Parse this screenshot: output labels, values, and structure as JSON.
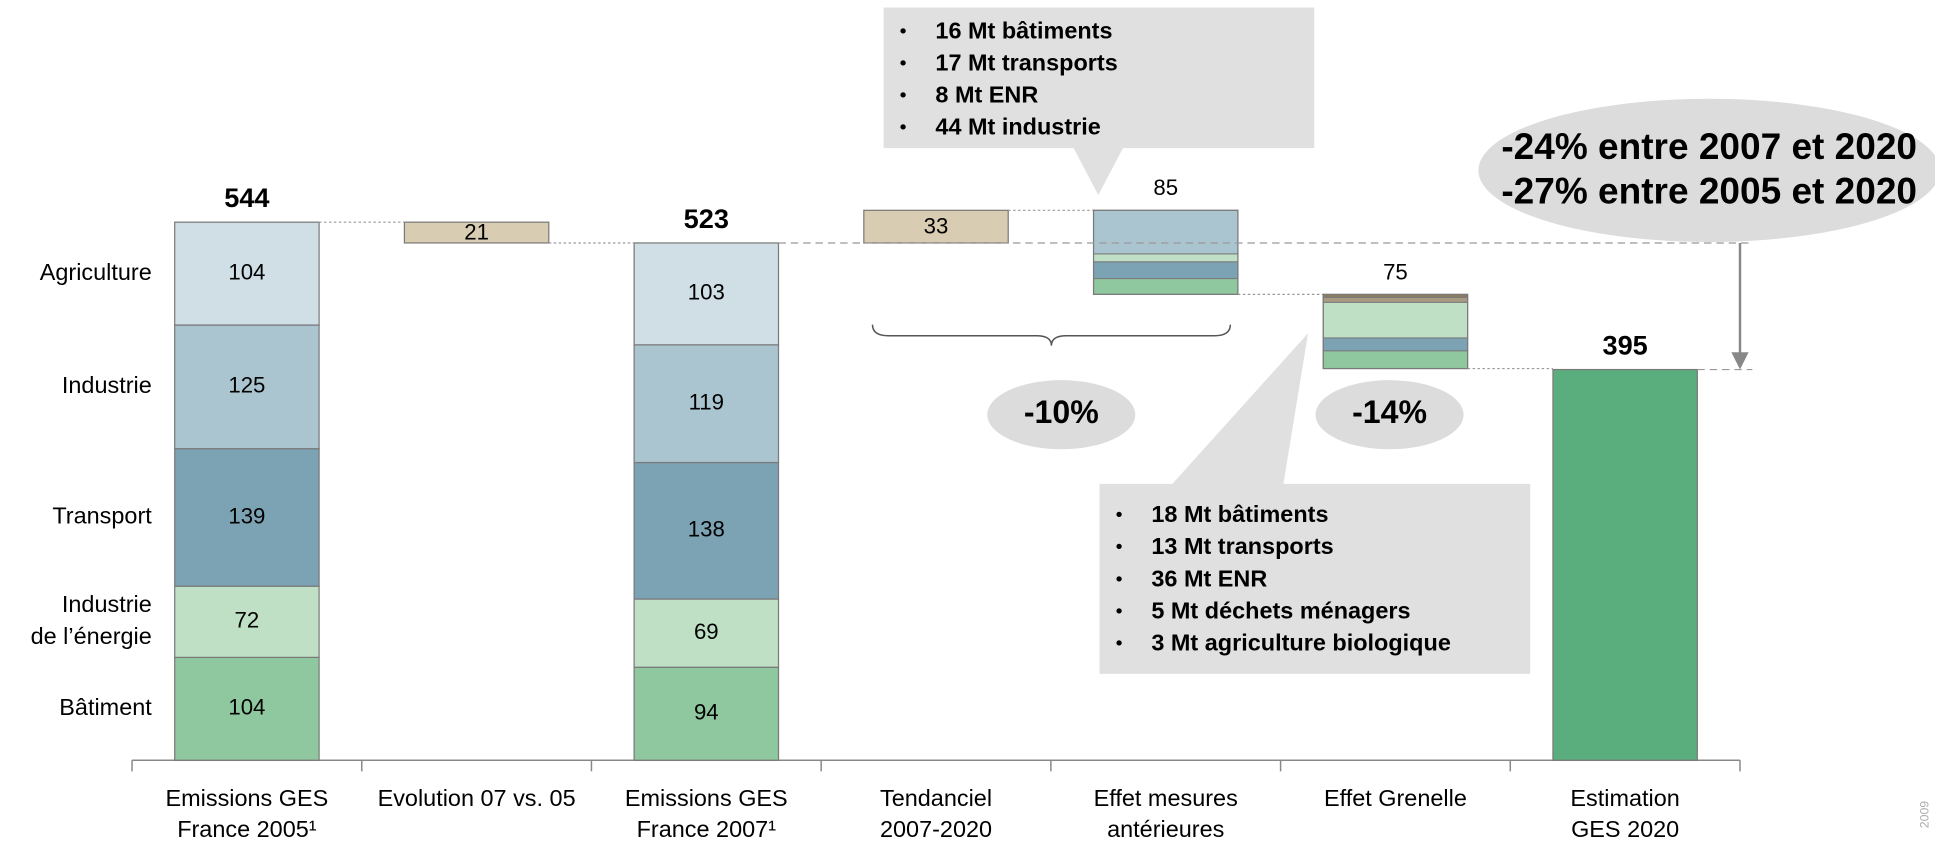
{
  "chart_data": {
    "type": "waterfall",
    "categories": [
      [
        "Emissions GES",
        "France 2005¹"
      ],
      [
        "Evolution 07 vs. 05"
      ],
      [
        "Emissions GES",
        "France 2007¹"
      ],
      [
        "Tendanciel",
        "2007-2020"
      ],
      [
        "Effet mesures",
        "antérieures"
      ],
      [
        "Effet Grenelle"
      ],
      [
        "Estimation",
        "GES 2020"
      ]
    ],
    "series": [
      {
        "name": "Bâtiment",
        "color": "#8fc79e",
        "values": [
          104,
          null,
          94,
          null,
          null,
          null,
          null
        ]
      },
      {
        "name": [
          "Industrie",
          "de l’énergie"
        ],
        "color": "#bfe0c5",
        "values": [
          72,
          null,
          69,
          null,
          null,
          null,
          null
        ]
      },
      {
        "name": "Transport",
        "color": "#7ba3b4",
        "values": [
          139,
          null,
          138,
          null,
          null,
          null,
          null
        ]
      },
      {
        "name": "Industrie",
        "color": "#abc5d0",
        "values": [
          125,
          null,
          119,
          null,
          null,
          null,
          null
        ]
      },
      {
        "name": "Agriculture",
        "color": "#d0dfe6",
        "values": [
          104,
          null,
          103,
          null,
          null,
          null,
          null
        ]
      }
    ],
    "totals": [
      544,
      null,
      523,
      null,
      null,
      null,
      395
    ],
    "evolution": {
      "value": 21,
      "color": "#d8ccb2"
    },
    "tendanciel": {
      "value": 33,
      "color": "#d8ccb2"
    },
    "mesures": {
      "total": 85,
      "items": [
        {
          "label": "16 Mt bâtiments",
          "value": 16,
          "color": "#8fc79e"
        },
        {
          "label": "17 Mt transports",
          "value": 17,
          "color": "#7ba3b4"
        },
        {
          "label": "8 Mt ENR",
          "value": 8,
          "color": "#bfe0c5"
        },
        {
          "label": "44 Mt industrie",
          "value": 44,
          "color": "#abc5d0"
        }
      ]
    },
    "grenelle": {
      "total": 75,
      "items": [
        {
          "label": "18 Mt bâtiments",
          "value": 18,
          "color": "#8fc79e"
        },
        {
          "label": "13 Mt transports",
          "value": 13,
          "color": "#7ba3b4"
        },
        {
          "label": "36 Mt ENR",
          "value": 36,
          "color": "#bfe0c5"
        },
        {
          "label": "5 Mt déchets ménagers",
          "value": 5,
          "color": "#a89a80"
        },
        {
          "label": "3 Mt agriculture biologique",
          "value": 3,
          "color": "#8c7b5e"
        }
      ]
    },
    "estimation_color": "#5aad7c",
    "annotations": {
      "mesures_share": "-10%",
      "grenelle_share": "-14%",
      "summary": [
        "-24% entre 2007 et 2020",
        "-27% entre 2005 et 2020"
      ]
    },
    "footnote": "2009"
  }
}
